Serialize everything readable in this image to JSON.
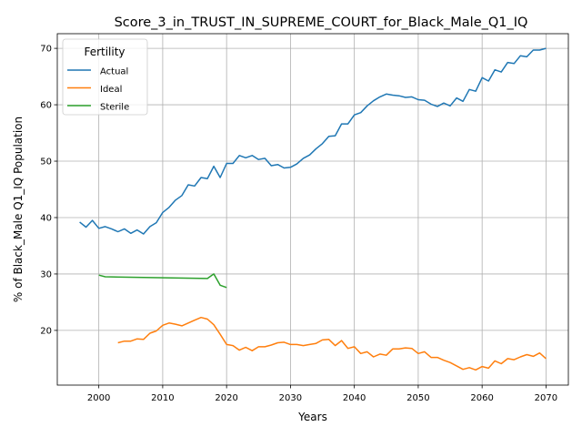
{
  "chart_data": {
    "type": "line",
    "title": "Score_3_in_TRUST_IN_SUPREME_COURT_for_Black_Male_Q1_IQ",
    "xlabel": "Years",
    "ylabel": "% of Black_Male Q1_IQ Population",
    "xlim": [
      1993.5,
      2073.5
    ],
    "ylim": [
      10.3,
      72.6
    ],
    "xticks": [
      2000,
      2010,
      2020,
      2030,
      2040,
      2050,
      2060,
      2070
    ],
    "yticks": [
      20,
      30,
      40,
      50,
      60,
      70
    ],
    "grid": true,
    "legend": {
      "title": "Fertility",
      "placement": "top-left"
    },
    "series": [
      {
        "name": "Actual",
        "color": "#1f77b4",
        "x": [
          1997,
          1998,
          1999,
          2000,
          2001,
          2002,
          2003,
          2004,
          2005,
          2006,
          2007,
          2008,
          2009,
          2010,
          2011,
          2012,
          2013,
          2014,
          2015,
          2016,
          2017,
          2018,
          2019,
          2020,
          2021,
          2022,
          2023,
          2024,
          2025,
          2026,
          2027,
          2028,
          2029,
          2030,
          2031,
          2032,
          2033,
          2034,
          2035,
          2036,
          2037,
          2038,
          2039,
          2040,
          2041,
          2042,
          2043,
          2044,
          2045,
          2046,
          2047,
          2048,
          2049,
          2050,
          2051,
          2052,
          2053,
          2054,
          2055,
          2056,
          2057,
          2058,
          2059,
          2060,
          2061,
          2062,
          2063,
          2064,
          2065,
          2066,
          2067,
          2068,
          2069,
          2070
        ],
        "values": [
          39.2,
          38.3,
          39.5,
          38.1,
          38.4,
          38.0,
          37.5,
          38.0,
          37.2,
          37.8,
          37.1,
          38.4,
          39.1,
          40.9,
          41.8,
          43.1,
          43.9,
          45.8,
          45.6,
          47.1,
          46.9,
          49.1,
          47.1,
          49.6,
          49.6,
          51.0,
          50.6,
          51.0,
          50.3,
          50.5,
          49.2,
          49.4,
          48.8,
          48.9,
          49.5,
          50.5,
          51.1,
          52.2,
          53.1,
          54.4,
          54.5,
          56.6,
          56.6,
          58.2,
          58.6,
          59.8,
          60.7,
          61.4,
          61.9,
          61.7,
          61.6,
          61.3,
          61.4,
          60.9,
          60.8,
          60.1,
          59.7,
          60.3,
          59.8,
          61.2,
          60.6,
          62.7,
          62.4,
          64.8,
          64.2,
          66.2,
          65.8,
          67.5,
          67.3,
          68.7,
          68.5,
          69.7,
          69.7,
          70.0
        ]
      },
      {
        "name": "Ideal",
        "color": "#ff7f0e",
        "x": [
          2003,
          2004,
          2005,
          2006,
          2007,
          2008,
          2009,
          2010,
          2011,
          2012,
          2013,
          2014,
          2015,
          2016,
          2017,
          2018,
          2019,
          2020,
          2021,
          2022,
          2023,
          2024,
          2025,
          2026,
          2027,
          2028,
          2029,
          2030,
          2031,
          2032,
          2033,
          2034,
          2035,
          2036,
          2037,
          2038,
          2039,
          2040,
          2041,
          2042,
          2043,
          2044,
          2045,
          2046,
          2047,
          2048,
          2049,
          2050,
          2051,
          2052,
          2053,
          2054,
          2055,
          2056,
          2057,
          2058,
          2059,
          2060,
          2061,
          2062,
          2063,
          2064,
          2065,
          2066,
          2067,
          2068,
          2069,
          2070
        ],
        "values": [
          17.8,
          18.1,
          18.1,
          18.5,
          18.4,
          19.5,
          19.9,
          20.9,
          21.3,
          21.1,
          20.8,
          21.3,
          21.8,
          22.3,
          22.0,
          21.0,
          19.3,
          17.5,
          17.3,
          16.5,
          17.0,
          16.4,
          17.1,
          17.1,
          17.4,
          17.8,
          17.9,
          17.5,
          17.5,
          17.3,
          17.5,
          17.7,
          18.3,
          18.4,
          17.3,
          18.2,
          16.8,
          17.1,
          15.9,
          16.2,
          15.3,
          15.8,
          15.6,
          16.7,
          16.7,
          16.9,
          16.8,
          15.9,
          16.2,
          15.2,
          15.2,
          14.7,
          14.3,
          13.7,
          13.1,
          13.4,
          13.0,
          13.6,
          13.3,
          14.6,
          14.1,
          15.0,
          14.8,
          15.3,
          15.7,
          15.4,
          16.0,
          15.0
        ]
      },
      {
        "name": "Sterile",
        "color": "#2ca02c",
        "x": [
          2000,
          2001,
          2017,
          2018,
          2019,
          2020
        ],
        "values": [
          29.8,
          29.5,
          29.2,
          30.0,
          28.0,
          27.6
        ]
      }
    ]
  }
}
